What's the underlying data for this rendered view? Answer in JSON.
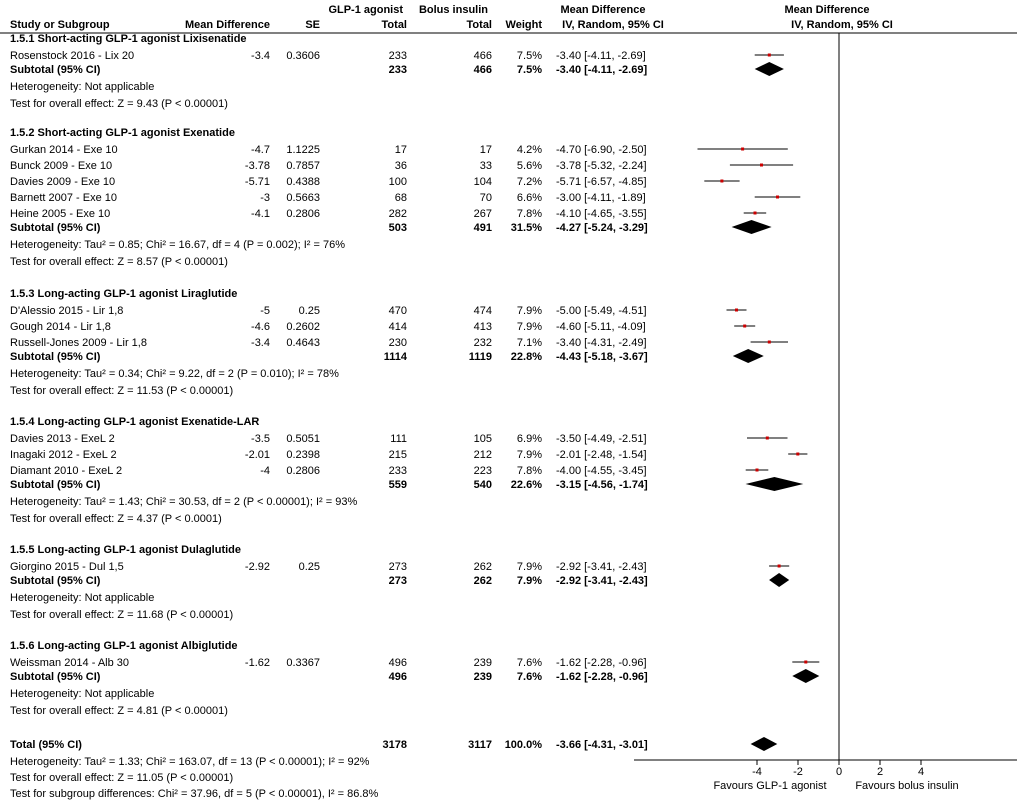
{
  "header": {
    "study_or_subgroup": "Study or Subgroup",
    "mean_difference": "Mean Difference",
    "se": "SE",
    "exp_group": "GLP-1 agonist",
    "ctl_group": "Bolus insulin",
    "total": "Total",
    "weight": "Weight",
    "md_col_title": "Mean Difference",
    "md_col_method": "IV, Random, 95% CI",
    "plot_title": "Mean Difference",
    "plot_method": "IV, Random, 95% CI"
  },
  "colors": {
    "point": "#cc0000",
    "diamond": "#000000",
    "line": "#000000"
  },
  "chart_data": {
    "type": "forest",
    "xlim": [
      -10,
      10
    ],
    "x_ticks": [
      "-4",
      "-2",
      "0",
      "2",
      "4"
    ],
    "x_tick_values": [
      -4,
      -2,
      0,
      2,
      4
    ],
    "favours_left": "Favours GLP-1 agonist",
    "favours_right": "Favours bolus insulin",
    "subgroups": [
      {
        "title": "1.5.1 Short-acting GLP-1 agonist Lixisenatide",
        "studies": [
          {
            "name": "Rosenstock 2016 - Lix 20",
            "md": "-3.4",
            "se": "0.3606",
            "n_exp": "233",
            "n_ctl": "466",
            "weight": "7.5%",
            "ci_text": "-3.40 [-4.11, -2.69]",
            "est": -3.4,
            "lo": -4.11,
            "hi": -2.69
          }
        ],
        "subtotal": {
          "label": "Subtotal (95% CI)",
          "n_exp": "233",
          "n_ctl": "466",
          "weight": "7.5%",
          "ci_text": "-3.40 [-4.11, -2.69]",
          "est": -3.4,
          "lo": -4.11,
          "hi": -2.69
        },
        "heterogeneity": "Heterogeneity: Not applicable",
        "overall": "Test for overall effect: Z = 9.43 (P < 0.00001)"
      },
      {
        "title": "1.5.2 Short-acting GLP-1 agonist Exenatide",
        "studies": [
          {
            "name": "Gurkan 2014 - Exe 10",
            "md": "-4.7",
            "se": "1.1225",
            "n_exp": "17",
            "n_ctl": "17",
            "weight": "4.2%",
            "ci_text": "-4.70 [-6.90, -2.50]",
            "est": -4.7,
            "lo": -6.9,
            "hi": -2.5
          },
          {
            "name": "Bunck 2009 - Exe 10",
            "md": "-3.78",
            "se": "0.7857",
            "n_exp": "36",
            "n_ctl": "33",
            "weight": "5.6%",
            "ci_text": "-3.78 [-5.32, -2.24]",
            "est": -3.78,
            "lo": -5.32,
            "hi": -2.24
          },
          {
            "name": "Davies 2009 - Exe 10",
            "md": "-5.71",
            "se": "0.4388",
            "n_exp": "100",
            "n_ctl": "104",
            "weight": "7.2%",
            "ci_text": "-5.71 [-6.57, -4.85]",
            "est": -5.71,
            "lo": -6.57,
            "hi": -4.85
          },
          {
            "name": "Barnett 2007 - Exe 10",
            "md": "-3",
            "se": "0.5663",
            "n_exp": "68",
            "n_ctl": "70",
            "weight": "6.6%",
            "ci_text": "-3.00 [-4.11, -1.89]",
            "est": -3.0,
            "lo": -4.11,
            "hi": -1.89
          },
          {
            "name": "Heine 2005 - Exe 10",
            "md": "-4.1",
            "se": "0.2806",
            "n_exp": "282",
            "n_ctl": "267",
            "weight": "7.8%",
            "ci_text": "-4.10 [-4.65, -3.55]",
            "est": -4.1,
            "lo": -4.65,
            "hi": -3.55
          }
        ],
        "subtotal": {
          "label": "Subtotal (95% CI)",
          "n_exp": "503",
          "n_ctl": "491",
          "weight": "31.5%",
          "ci_text": "-4.27 [-5.24, -3.29]",
          "est": -4.27,
          "lo": -5.24,
          "hi": -3.29
        },
        "heterogeneity": "Heterogeneity: Tau² = 0.85; Chi² = 16.67, df = 4 (P = 0.002); I² = 76%",
        "overall": "Test for overall effect: Z = 8.57 (P < 0.00001)"
      },
      {
        "title": "1.5.3 Long-acting GLP-1 agonist Liraglutide",
        "studies": [
          {
            "name": "D'Alessio 2015 - Lir 1,8",
            "md": "-5",
            "se": "0.25",
            "n_exp": "470",
            "n_ctl": "474",
            "weight": "7.9%",
            "ci_text": "-5.00 [-5.49, -4.51]",
            "est": -5.0,
            "lo": -5.49,
            "hi": -4.51
          },
          {
            "name": "Gough 2014 - Lir 1,8",
            "md": "-4.6",
            "se": "0.2602",
            "n_exp": "414",
            "n_ctl": "413",
            "weight": "7.9%",
            "ci_text": "-4.60 [-5.11, -4.09]",
            "est": -4.6,
            "lo": -5.11,
            "hi": -4.09
          },
          {
            "name": "Russell-Jones 2009 - Lir 1,8",
            "md": "-3.4",
            "se": "0.4643",
            "n_exp": "230",
            "n_ctl": "232",
            "weight": "7.1%",
            "ci_text": "-3.40 [-4.31, -2.49]",
            "est": -3.4,
            "lo": -4.31,
            "hi": -2.49
          }
        ],
        "subtotal": {
          "label": "Subtotal (95% CI)",
          "n_exp": "1114",
          "n_ctl": "1119",
          "weight": "22.8%",
          "ci_text": "-4.43 [-5.18, -3.67]",
          "est": -4.43,
          "lo": -5.18,
          "hi": -3.67
        },
        "heterogeneity": "Heterogeneity: Tau² = 0.34; Chi² = 9.22, df = 2 (P = 0.010); I² = 78%",
        "overall": "Test for overall effect: Z = 11.53 (P < 0.00001)"
      },
      {
        "title": "1.5.4 Long-acting GLP-1 agonist Exenatide-LAR",
        "studies": [
          {
            "name": "Davies 2013 - ExeL 2",
            "md": "-3.5",
            "se": "0.5051",
            "n_exp": "111",
            "n_ctl": "105",
            "weight": "6.9%",
            "ci_text": "-3.50 [-4.49, -2.51]",
            "est": -3.5,
            "lo": -4.49,
            "hi": -2.51
          },
          {
            "name": "Inagaki 2012 - ExeL 2",
            "md": "-2.01",
            "se": "0.2398",
            "n_exp": "215",
            "n_ctl": "212",
            "weight": "7.9%",
            "ci_text": "-2.01 [-2.48, -1.54]",
            "est": -2.01,
            "lo": -2.48,
            "hi": -1.54
          },
          {
            "name": "Diamant 2010 - ExeL 2",
            "md": "-4",
            "se": "0.2806",
            "n_exp": "233",
            "n_ctl": "223",
            "weight": "7.8%",
            "ci_text": "-4.00 [-4.55, -3.45]",
            "est": -4.0,
            "lo": -4.55,
            "hi": -3.45
          }
        ],
        "subtotal": {
          "label": "Subtotal (95% CI)",
          "n_exp": "559",
          "n_ctl": "540",
          "weight": "22.6%",
          "ci_text": "-3.15 [-4.56, -1.74]",
          "est": -3.15,
          "lo": -4.56,
          "hi": -1.74
        },
        "heterogeneity": "Heterogeneity: Tau² = 1.43; Chi² = 30.53, df = 2 (P < 0.00001); I² = 93%",
        "overall": "Test for overall effect: Z = 4.37 (P < 0.0001)"
      },
      {
        "title": "1.5.5 Long-acting GLP-1 agonist Dulaglutide",
        "studies": [
          {
            "name": "Giorgino 2015 - Dul 1,5",
            "md": "-2.92",
            "se": "0.25",
            "n_exp": "273",
            "n_ctl": "262",
            "weight": "7.9%",
            "ci_text": "-2.92 [-3.41, -2.43]",
            "est": -2.92,
            "lo": -3.41,
            "hi": -2.43
          }
        ],
        "subtotal": {
          "label": "Subtotal (95% CI)",
          "n_exp": "273",
          "n_ctl": "262",
          "weight": "7.9%",
          "ci_text": "-2.92 [-3.41, -2.43]",
          "est": -2.92,
          "lo": -3.41,
          "hi": -2.43
        },
        "heterogeneity": "Heterogeneity: Not applicable",
        "overall": "Test for overall effect: Z = 11.68 (P < 0.00001)"
      },
      {
        "title": "1.5.6 Long-acting GLP-1 agonist Albiglutide",
        "studies": [
          {
            "name": "Weissman 2014 - Alb 30",
            "md": "-1.62",
            "se": "0.3367",
            "n_exp": "496",
            "n_ctl": "239",
            "weight": "7.6%",
            "ci_text": "-1.62 [-2.28, -0.96]",
            "est": -1.62,
            "lo": -2.28,
            "hi": -0.96
          }
        ],
        "subtotal": {
          "label": "Subtotal (95% CI)",
          "n_exp": "496",
          "n_ctl": "239",
          "weight": "7.6%",
          "ci_text": "-1.62 [-2.28, -0.96]",
          "est": -1.62,
          "lo": -2.28,
          "hi": -0.96
        },
        "heterogeneity": "Heterogeneity: Not applicable",
        "overall": "Test for overall effect: Z = 4.81 (P < 0.00001)"
      }
    ],
    "total": {
      "label": "Total (95% CI)",
      "n_exp": "3178",
      "n_ctl": "3117",
      "weight": "100.0%",
      "ci_text": "-3.66 [-4.31, -3.01]",
      "est": -3.66,
      "lo": -4.31,
      "hi": -3.01
    },
    "total_heterogeneity": "Heterogeneity: Tau² = 1.33; Chi² = 163.07, df = 13 (P < 0.00001); I² = 92%",
    "total_overall": "Test for overall effect: Z = 11.05 (P < 0.00001)",
    "subgroup_differences": "Test for subgroup differences: Chi² = 37.96, df = 5 (P < 0.00001), I² = 86.8%"
  }
}
